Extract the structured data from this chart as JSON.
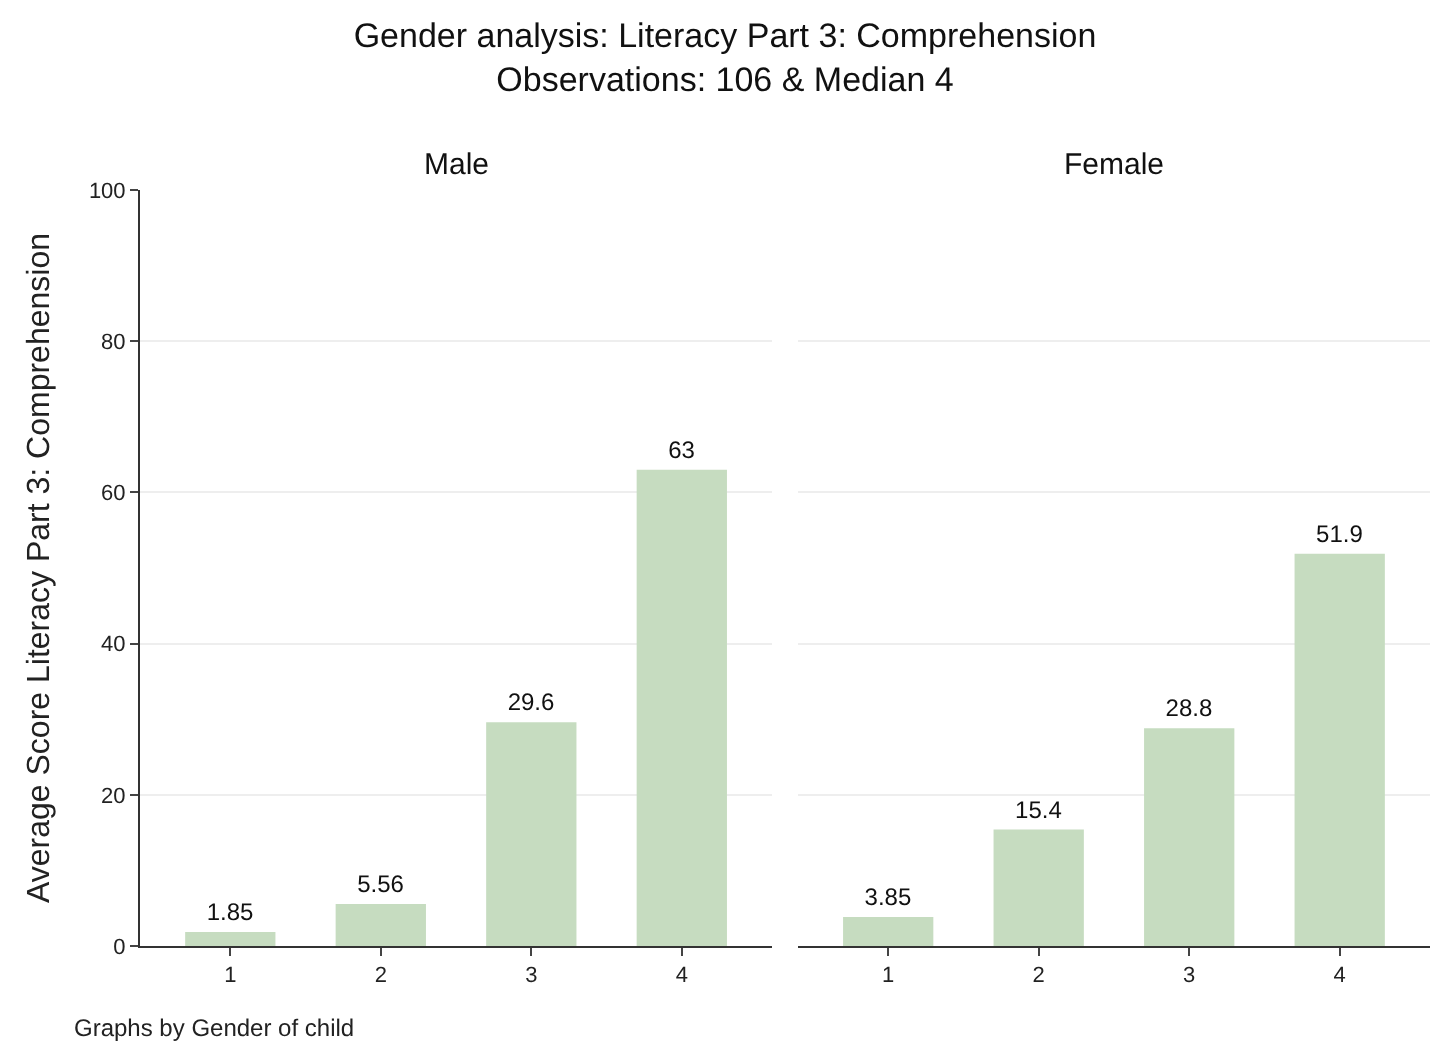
{
  "chart_data": [
    {
      "type": "other",
      "title": "Gender analysis: Literacy Part 3: Comprehension",
      "subtitle": "Observations: 106 & Median 4",
      "annotations": [
        "Graphs by Gender of child"
      ]
    },
    {
      "type": "bar",
      "title": "Male",
      "ylabel": "Average Score Literacy Part 3: Comprehension",
      "categories": [
        "1",
        "2",
        "3",
        "4"
      ],
      "values": [
        1.85,
        5.56,
        29.6,
        63
      ],
      "color": "#c6dcc0",
      "data_labels": true,
      "ylim": [
        0,
        100
      ],
      "yticks": [
        0,
        20,
        40,
        60,
        80,
        100
      ],
      "grid": "y",
      "legend": false
    },
    {
      "type": "bar",
      "title": "Female",
      "categories": [
        "1",
        "2",
        "3",
        "4"
      ],
      "values": [
        3.85,
        15.4,
        28.8,
        51.9
      ],
      "color": "#c6dcc0",
      "data_labels": true,
      "ylim": [
        0,
        100
      ],
      "yticks": [
        0,
        20,
        40,
        60,
        80,
        100
      ],
      "grid": "y",
      "legend": false,
      "tick_labels": "x"
    }
  ]
}
